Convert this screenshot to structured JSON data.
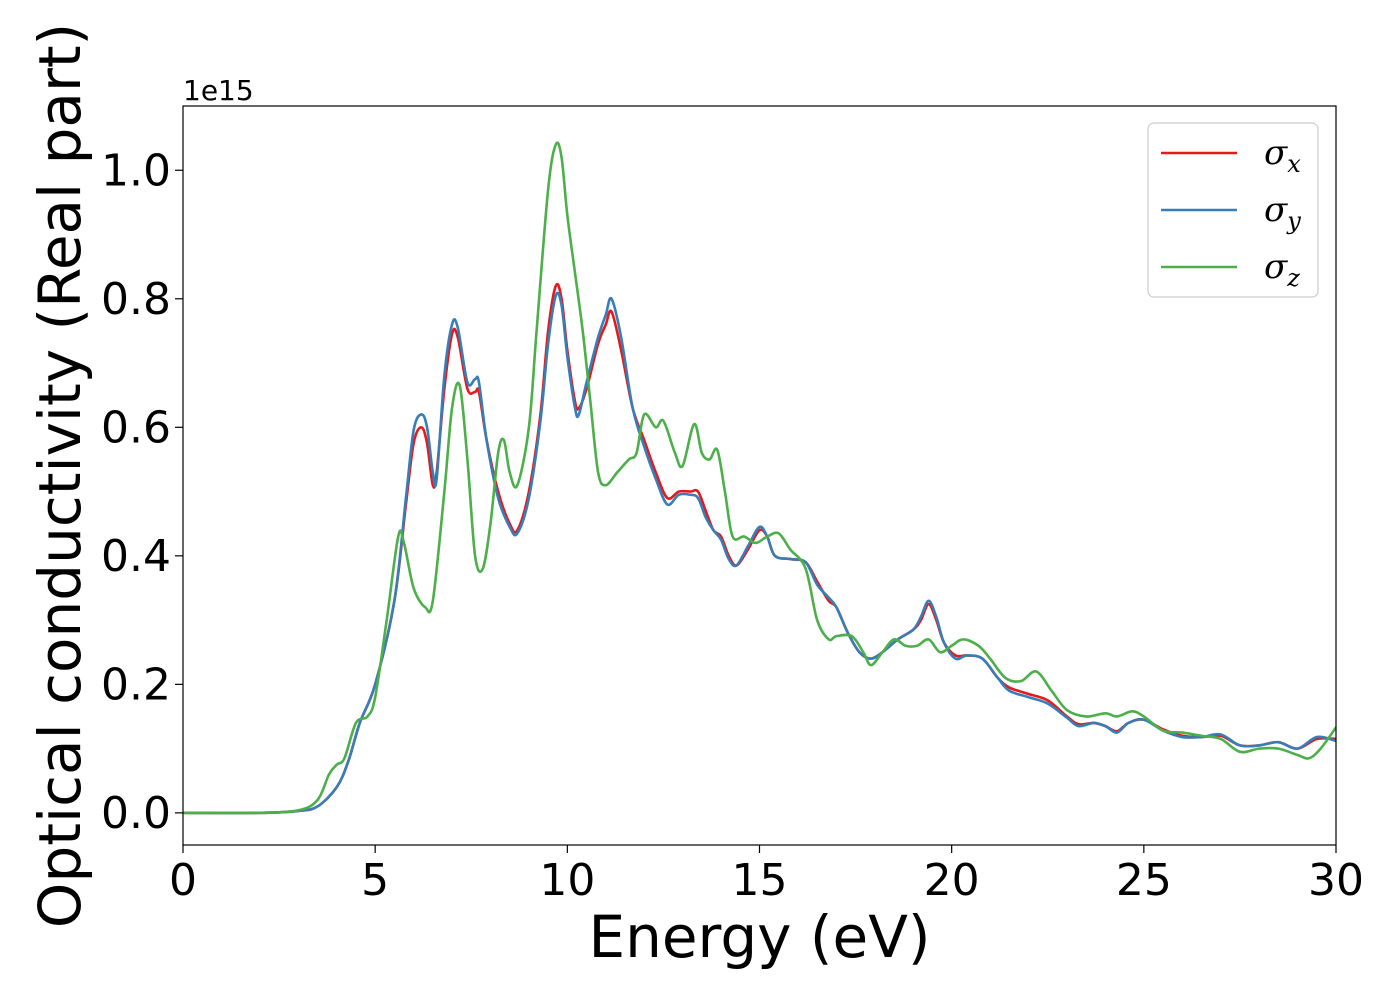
{
  "chart_data": {
    "type": "line",
    "xlabel": "Energy (eV)",
    "ylabel": "Optical conductivity (Real part)",
    "y_offset_label": "1e15",
    "xlim": [
      0,
      30
    ],
    "ylim": [
      -0.05,
      1.1
    ],
    "xticks": [
      0,
      5,
      10,
      15,
      20,
      25,
      30
    ],
    "yticks": [
      0.0,
      0.2,
      0.4,
      0.6,
      0.8,
      1.0
    ],
    "xtick_labels": [
      "0",
      "5",
      "10",
      "15",
      "20",
      "25",
      "30"
    ],
    "ytick_labels": [
      "0.0",
      "0.2",
      "0.4",
      "0.6",
      "0.8",
      "1.0"
    ],
    "grid": false,
    "legend": "top-right",
    "series": [
      {
        "name": "σx",
        "name_base": "σ",
        "name_sub": "x",
        "color": "#e41a1c",
        "points": [
          [
            0,
            0
          ],
          [
            2,
            0
          ],
          [
            3,
            0.003
          ],
          [
            3.5,
            0.01
          ],
          [
            4,
            0.04
          ],
          [
            4.3,
            0.08
          ],
          [
            4.6,
            0.14
          ],
          [
            5,
            0.2
          ],
          [
            5.5,
            0.33
          ],
          [
            5.8,
            0.48
          ],
          [
            6,
            0.575
          ],
          [
            6.2,
            0.6
          ],
          [
            6.35,
            0.575
          ],
          [
            6.5,
            0.51
          ],
          [
            6.6,
            0.53
          ],
          [
            6.8,
            0.66
          ],
          [
            7,
            0.745
          ],
          [
            7.15,
            0.74
          ],
          [
            7.4,
            0.66
          ],
          [
            7.6,
            0.655
          ],
          [
            7.7,
            0.655
          ],
          [
            7.9,
            0.58
          ],
          [
            8.2,
            0.5
          ],
          [
            8.5,
            0.45
          ],
          [
            8.7,
            0.44
          ],
          [
            9,
            0.5
          ],
          [
            9.3,
            0.62
          ],
          [
            9.5,
            0.75
          ],
          [
            9.7,
            0.82
          ],
          [
            9.85,
            0.8
          ],
          [
            10,
            0.72
          ],
          [
            10.2,
            0.64
          ],
          [
            10.3,
            0.63
          ],
          [
            10.5,
            0.66
          ],
          [
            10.8,
            0.73
          ],
          [
            11,
            0.76
          ],
          [
            11.15,
            0.78
          ],
          [
            11.4,
            0.72
          ],
          [
            11.7,
            0.63
          ],
          [
            12,
            0.58
          ],
          [
            12.3,
            0.53
          ],
          [
            12.6,
            0.49
          ],
          [
            12.9,
            0.5
          ],
          [
            13.2,
            0.5
          ],
          [
            13.4,
            0.5
          ],
          [
            13.6,
            0.47
          ],
          [
            13.8,
            0.44
          ],
          [
            14,
            0.43
          ],
          [
            14.2,
            0.4
          ],
          [
            14.4,
            0.385
          ],
          [
            14.7,
            0.41
          ],
          [
            15,
            0.44
          ],
          [
            15.2,
            0.43
          ],
          [
            15.4,
            0.4
          ],
          [
            15.8,
            0.395
          ],
          [
            16.2,
            0.39
          ],
          [
            16.5,
            0.36
          ],
          [
            16.8,
            0.33
          ],
          [
            17,
            0.32
          ],
          [
            17.3,
            0.28
          ],
          [
            17.6,
            0.25
          ],
          [
            17.9,
            0.24
          ],
          [
            18.2,
            0.25
          ],
          [
            18.6,
            0.27
          ],
          [
            19,
            0.285
          ],
          [
            19.2,
            0.3
          ],
          [
            19.4,
            0.325
          ],
          [
            19.6,
            0.3
          ],
          [
            19.8,
            0.265
          ],
          [
            20.1,
            0.245
          ],
          [
            20.4,
            0.245
          ],
          [
            20.8,
            0.24
          ],
          [
            21.2,
            0.21
          ],
          [
            21.5,
            0.195
          ],
          [
            22,
            0.185
          ],
          [
            22.5,
            0.175
          ],
          [
            23,
            0.15
          ],
          [
            23.3,
            0.138
          ],
          [
            23.7,
            0.14
          ],
          [
            24,
            0.135
          ],
          [
            24.3,
            0.127
          ],
          [
            24.6,
            0.14
          ],
          [
            25,
            0.145
          ],
          [
            25.5,
            0.13
          ],
          [
            26,
            0.12
          ],
          [
            26.5,
            0.118
          ],
          [
            27,
            0.12
          ],
          [
            27.5,
            0.105
          ],
          [
            28,
            0.105
          ],
          [
            28.5,
            0.11
          ],
          [
            29,
            0.1
          ],
          [
            29.5,
            0.115
          ],
          [
            30,
            0.115
          ]
        ]
      },
      {
        "name": "σy",
        "name_base": "σ",
        "name_sub": "y",
        "color": "#377eb8",
        "points": [
          [
            0,
            0
          ],
          [
            2,
            0
          ],
          [
            3,
            0.003
          ],
          [
            3.5,
            0.01
          ],
          [
            4,
            0.04
          ],
          [
            4.3,
            0.08
          ],
          [
            4.6,
            0.14
          ],
          [
            5,
            0.2
          ],
          [
            5.5,
            0.33
          ],
          [
            5.8,
            0.49
          ],
          [
            6,
            0.595
          ],
          [
            6.2,
            0.62
          ],
          [
            6.35,
            0.6
          ],
          [
            6.5,
            0.53
          ],
          [
            6.6,
            0.52
          ],
          [
            6.8,
            0.68
          ],
          [
            7,
            0.76
          ],
          [
            7.15,
            0.755
          ],
          [
            7.4,
            0.67
          ],
          [
            7.6,
            0.675
          ],
          [
            7.7,
            0.67
          ],
          [
            7.9,
            0.58
          ],
          [
            8.2,
            0.49
          ],
          [
            8.5,
            0.445
          ],
          [
            8.7,
            0.435
          ],
          [
            9,
            0.49
          ],
          [
            9.3,
            0.61
          ],
          [
            9.5,
            0.73
          ],
          [
            9.7,
            0.805
          ],
          [
            9.85,
            0.79
          ],
          [
            10,
            0.71
          ],
          [
            10.2,
            0.63
          ],
          [
            10.3,
            0.62
          ],
          [
            10.5,
            0.67
          ],
          [
            10.8,
            0.74
          ],
          [
            11,
            0.775
          ],
          [
            11.15,
            0.8
          ],
          [
            11.4,
            0.74
          ],
          [
            11.7,
            0.63
          ],
          [
            12,
            0.57
          ],
          [
            12.3,
            0.52
          ],
          [
            12.6,
            0.48
          ],
          [
            12.9,
            0.495
          ],
          [
            13.2,
            0.495
          ],
          [
            13.4,
            0.49
          ],
          [
            13.6,
            0.46
          ],
          [
            13.8,
            0.44
          ],
          [
            14,
            0.425
          ],
          [
            14.2,
            0.395
          ],
          [
            14.4,
            0.385
          ],
          [
            14.7,
            0.415
          ],
          [
            15,
            0.445
          ],
          [
            15.2,
            0.43
          ],
          [
            15.4,
            0.4
          ],
          [
            15.8,
            0.395
          ],
          [
            16.2,
            0.39
          ],
          [
            16.5,
            0.355
          ],
          [
            16.8,
            0.335
          ],
          [
            17,
            0.32
          ],
          [
            17.3,
            0.28
          ],
          [
            17.6,
            0.25
          ],
          [
            17.9,
            0.24
          ],
          [
            18.2,
            0.25
          ],
          [
            18.6,
            0.27
          ],
          [
            19,
            0.285
          ],
          [
            19.2,
            0.305
          ],
          [
            19.4,
            0.33
          ],
          [
            19.6,
            0.305
          ],
          [
            19.8,
            0.265
          ],
          [
            20.1,
            0.24
          ],
          [
            20.4,
            0.245
          ],
          [
            20.8,
            0.24
          ],
          [
            21.2,
            0.21
          ],
          [
            21.5,
            0.19
          ],
          [
            22,
            0.18
          ],
          [
            22.5,
            0.17
          ],
          [
            23,
            0.148
          ],
          [
            23.3,
            0.135
          ],
          [
            23.7,
            0.14
          ],
          [
            24,
            0.135
          ],
          [
            24.3,
            0.125
          ],
          [
            24.6,
            0.14
          ],
          [
            25,
            0.145
          ],
          [
            25.5,
            0.128
          ],
          [
            26,
            0.118
          ],
          [
            26.5,
            0.118
          ],
          [
            27,
            0.122
          ],
          [
            27.5,
            0.105
          ],
          [
            28,
            0.105
          ],
          [
            28.5,
            0.11
          ],
          [
            29,
            0.1
          ],
          [
            29.5,
            0.118
          ],
          [
            30,
            0.112
          ]
        ]
      },
      {
        "name": "σz",
        "name_base": "σ",
        "name_sub": "z",
        "color": "#4daf4a",
        "points": [
          [
            0,
            0
          ],
          [
            2,
            0
          ],
          [
            3,
            0.004
          ],
          [
            3.5,
            0.02
          ],
          [
            3.8,
            0.06
          ],
          [
            4,
            0.075
          ],
          [
            4.2,
            0.085
          ],
          [
            4.5,
            0.14
          ],
          [
            4.8,
            0.15
          ],
          [
            5,
            0.18
          ],
          [
            5.3,
            0.3
          ],
          [
            5.6,
            0.43
          ],
          [
            5.75,
            0.42
          ],
          [
            6,
            0.35
          ],
          [
            6.3,
            0.32
          ],
          [
            6.5,
            0.33
          ],
          [
            6.8,
            0.5
          ],
          [
            7,
            0.63
          ],
          [
            7.2,
            0.665
          ],
          [
            7.4,
            0.55
          ],
          [
            7.6,
            0.4
          ],
          [
            7.8,
            0.38
          ],
          [
            8,
            0.45
          ],
          [
            8.2,
            0.56
          ],
          [
            8.35,
            0.58
          ],
          [
            8.5,
            0.53
          ],
          [
            8.7,
            0.51
          ],
          [
            9,
            0.6
          ],
          [
            9.2,
            0.75
          ],
          [
            9.5,
            0.97
          ],
          [
            9.7,
            1.04
          ],
          [
            9.85,
            1.02
          ],
          [
            10,
            0.93
          ],
          [
            10.2,
            0.84
          ],
          [
            10.4,
            0.75
          ],
          [
            10.6,
            0.64
          ],
          [
            10.8,
            0.53
          ],
          [
            11,
            0.51
          ],
          [
            11.3,
            0.53
          ],
          [
            11.6,
            0.55
          ],
          [
            11.8,
            0.56
          ],
          [
            12,
            0.62
          ],
          [
            12.3,
            0.6
          ],
          [
            12.5,
            0.61
          ],
          [
            12.8,
            0.56
          ],
          [
            13,
            0.54
          ],
          [
            13.3,
            0.605
          ],
          [
            13.5,
            0.56
          ],
          [
            13.7,
            0.55
          ],
          [
            13.9,
            0.565
          ],
          [
            14.1,
            0.5
          ],
          [
            14.3,
            0.43
          ],
          [
            14.6,
            0.43
          ],
          [
            14.9,
            0.42
          ],
          [
            15.2,
            0.43
          ],
          [
            15.5,
            0.435
          ],
          [
            15.8,
            0.41
          ],
          [
            16.2,
            0.38
          ],
          [
            16.5,
            0.3
          ],
          [
            16.8,
            0.27
          ],
          [
            17,
            0.275
          ],
          [
            17.4,
            0.275
          ],
          [
            17.7,
            0.25
          ],
          [
            17.9,
            0.23
          ],
          [
            18.2,
            0.25
          ],
          [
            18.5,
            0.27
          ],
          [
            18.8,
            0.26
          ],
          [
            19.1,
            0.26
          ],
          [
            19.4,
            0.27
          ],
          [
            19.7,
            0.25
          ],
          [
            20,
            0.26
          ],
          [
            20.3,
            0.27
          ],
          [
            20.7,
            0.26
          ],
          [
            21,
            0.24
          ],
          [
            21.4,
            0.21
          ],
          [
            21.8,
            0.205
          ],
          [
            22.2,
            0.22
          ],
          [
            22.6,
            0.19
          ],
          [
            23,
            0.16
          ],
          [
            23.5,
            0.15
          ],
          [
            24,
            0.155
          ],
          [
            24.3,
            0.15
          ],
          [
            24.7,
            0.158
          ],
          [
            25,
            0.15
          ],
          [
            25.5,
            0.128
          ],
          [
            26,
            0.125
          ],
          [
            26.5,
            0.12
          ],
          [
            27,
            0.115
          ],
          [
            27.5,
            0.095
          ],
          [
            28,
            0.1
          ],
          [
            28.5,
            0.1
          ],
          [
            29,
            0.09
          ],
          [
            29.3,
            0.085
          ],
          [
            29.6,
            0.1
          ],
          [
            30,
            0.133
          ]
        ]
      }
    ]
  }
}
